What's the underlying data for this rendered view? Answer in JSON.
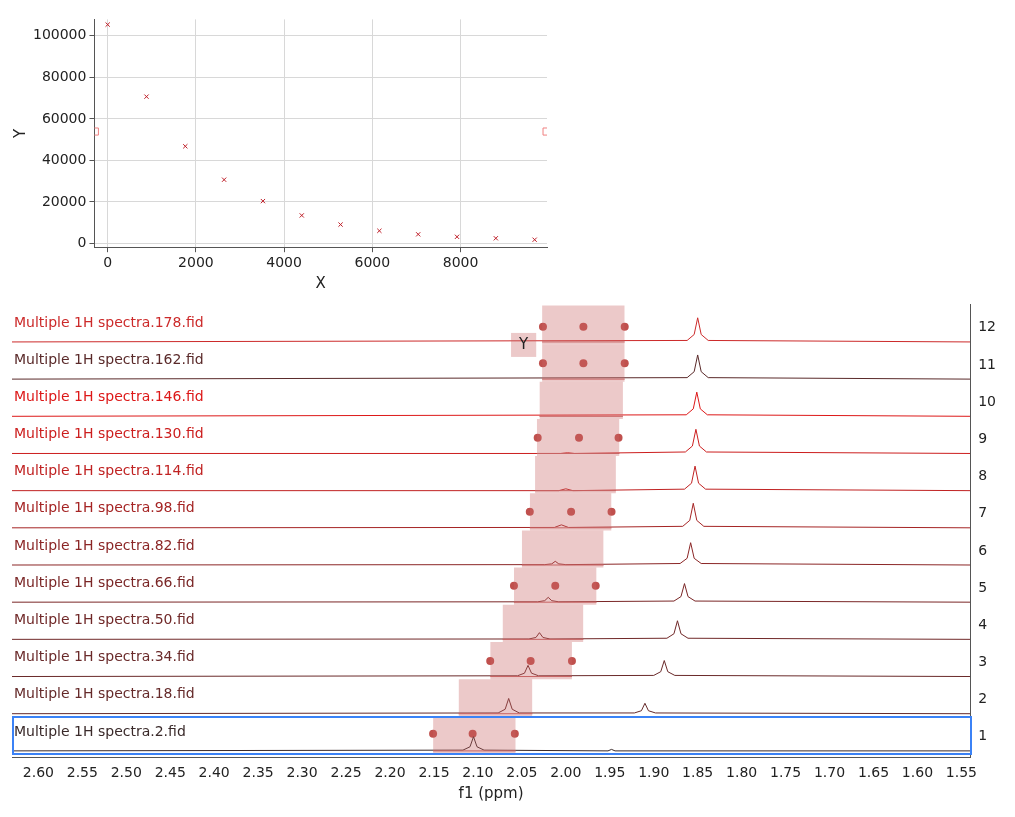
{
  "chart_data": [
    {
      "type": "scatter",
      "xlabel": "X",
      "ylabel": "Y",
      "xlim": [
        -300,
        9960
      ],
      "ylim": [
        -1800,
        107900
      ],
      "xticks": [
        0,
        2000,
        4000,
        6000,
        8000
      ],
      "yticks": [
        0,
        20000,
        40000,
        60000,
        80000,
        100000
      ],
      "grid": true,
      "series": [
        {
          "marker": "cross",
          "color": "#c0202a",
          "x": [
            0,
            880,
            1760,
            2640,
            3520,
            4400,
            5280,
            6160,
            7040,
            7920,
            8800,
            9680
          ],
          "values": [
            105400,
            70700,
            46800,
            30700,
            20400,
            13500,
            9100,
            6100,
            4400,
            3200,
            2500,
            1800
          ]
        },
        {
          "marker": "square",
          "color": "#f08080",
          "x": [
            -290,
            9950
          ],
          "values": [
            53900,
            53900
          ]
        }
      ]
    },
    {
      "type": "line",
      "xlabel": "f1 (ppm)",
      "xlim": [
        2.63,
        1.54
      ],
      "ylim": [
        0.45,
        12.63
      ],
      "grid": false,
      "xticks": [
        {
          "value": 2.6,
          "label": "2.60"
        },
        2.55,
        {
          "value": 2.5,
          "label": "2.50"
        },
        2.45,
        {
          "value": 2.4,
          "label": "2.40"
        },
        2.35,
        {
          "value": 2.3,
          "label": "2.30"
        },
        2.25,
        {
          "value": 2.2,
          "label": "2.20"
        },
        2.15,
        {
          "value": 2.1,
          "label": "2.10"
        },
        2.05,
        {
          "value": 2.0,
          "label": "2.00"
        },
        1.95,
        {
          "value": 1.9,
          "label": "1.90"
        },
        1.85,
        {
          "value": 1.8,
          "label": "1.80"
        },
        1.75,
        {
          "value": 1.7,
          "label": "1.70"
        },
        1.65,
        {
          "value": 1.6,
          "label": "1.60"
        },
        1.55
      ],
      "yticks": [
        1,
        2,
        3,
        4,
        5,
        6,
        7,
        8,
        9,
        10,
        11,
        12
      ],
      "annotations": [
        {
          "text": "Y",
          "x": 2.048,
          "y": 11.54
        }
      ],
      "series": [
        {
          "color": "#c86464",
          "x": [
            2.151,
            2.057
          ],
          "lower": [
            0.55,
            0.55
          ],
          "upper": [
            1.55,
            1.55
          ],
          "values": [
            0.62,
            0.62
          ]
        },
        {
          "color": "#c86464",
          "x": [
            2.122,
            2.038
          ],
          "lower": [
            1.55,
            1.55
          ],
          "upper": [
            2.55,
            2.55
          ],
          "values": [
            1.62,
            1.62
          ]
        },
        {
          "color": "#c86464",
          "x": [
            2.086,
            1.993
          ],
          "lower": [
            2.55,
            2.55
          ],
          "upper": [
            3.55,
            3.55
          ],
          "values": [
            2.62,
            2.62
          ]
        },
        {
          "color": "#c86464",
          "x": [
            2.072,
            1.98
          ],
          "lower": [
            3.55,
            3.55
          ],
          "upper": [
            4.55,
            4.55
          ],
          "values": [
            3.62,
            3.62
          ]
        },
        {
          "color": "#c86464",
          "x": [
            2.059,
            1.965
          ],
          "lower": [
            4.55,
            4.55
          ],
          "upper": [
            5.55,
            5.55
          ],
          "values": [
            4.62,
            4.62
          ]
        },
        {
          "color": "#c86464",
          "x": [
            2.05,
            1.957
          ],
          "lower": [
            5.55,
            5.55
          ],
          "upper": [
            6.55,
            6.55
          ],
          "values": [
            5.62,
            5.62
          ]
        },
        {
          "color": "#c86464",
          "x": [
            2.041,
            1.948
          ],
          "lower": [
            6.55,
            6.55
          ],
          "upper": [
            7.55,
            7.55
          ],
          "values": [
            6.62,
            6.62
          ]
        },
        {
          "color": "#c86464",
          "x": [
            2.035,
            1.943
          ],
          "lower": [
            7.55,
            7.55
          ],
          "upper": [
            8.55,
            8.55
          ],
          "values": [
            7.62,
            7.62
          ]
        },
        {
          "color": "#c86464",
          "x": [
            2.033,
            1.939
          ],
          "lower": [
            8.55,
            8.55
          ],
          "upper": [
            9.55,
            9.55
          ],
          "values": [
            8.62,
            8.62
          ]
        },
        {
          "color": "#c86464",
          "x": [
            2.03,
            1.935
          ],
          "lower": [
            9.55,
            9.55
          ],
          "upper": [
            10.55,
            10.55
          ],
          "values": [
            9.62,
            9.62
          ]
        },
        {
          "color": "#c86464",
          "x": [
            2.027,
            1.933
          ],
          "lower": [
            10.55,
            10.55
          ],
          "upper": [
            11.55,
            11.55
          ],
          "values": [
            10.62,
            10.62
          ]
        },
        {
          "color": "#c86464",
          "x": [
            2.027,
            1.933
          ],
          "lower": [
            11.55,
            11.55
          ],
          "upper": [
            12.6,
            12.6
          ],
          "values": [
            11.62,
            11.62
          ]
        },
        {
          "name": "Multiple 1H spectra.178.fid",
          "color": "#cc2a2a",
          "x": [
            2.63,
            1.862,
            1.854,
            1.85,
            1.846,
            1.838,
            1.54
          ],
          "values": [
            11.62,
            11.66,
            11.82,
            12.27,
            11.82,
            11.66,
            11.62
          ]
        },
        {
          "name": "Multiple 1H spectra.162.fid",
          "color": "#5a2a2a",
          "x": [
            2.63,
            1.862,
            1.854,
            1.85,
            1.846,
            1.838,
            1.54
          ],
          "values": [
            10.62,
            10.66,
            10.82,
            11.27,
            10.82,
            10.66,
            10.62
          ]
        },
        {
          "name": "Multiple 1H spectra.146.fid",
          "color": "#dd1818",
          "x": [
            2.63,
            1.863,
            1.855,
            1.851,
            1.847,
            1.839,
            1.54
          ],
          "values": [
            9.62,
            9.66,
            9.82,
            10.27,
            9.82,
            9.66,
            9.62
          ]
        },
        {
          "name": "Multiple 1H spectra.130.fid",
          "color": "#cc1e1e",
          "x": [
            2.63,
            2.006,
            1.998,
            1.99,
            1.864,
            1.856,
            1.852,
            1.848,
            1.84,
            1.54
          ],
          "values": [
            8.62,
            8.62,
            8.64,
            8.62,
            8.66,
            8.82,
            9.27,
            8.82,
            8.66,
            8.62
          ]
        },
        {
          "name": "Multiple 1H spectra.114.fid",
          "color": "#c02222",
          "x": [
            2.63,
            2.008,
            2.0,
            1.992,
            1.865,
            1.857,
            1.853,
            1.849,
            1.841,
            1.54
          ],
          "values": [
            7.62,
            7.62,
            7.67,
            7.62,
            7.66,
            7.82,
            8.28,
            7.82,
            7.66,
            7.62
          ]
        },
        {
          "name": "Multiple 1H spectra.98.fid",
          "color": "#a52424",
          "x": [
            2.63,
            2.013,
            2.005,
            1.997,
            1.867,
            1.859,
            1.855,
            1.851,
            1.843,
            1.54
          ],
          "values": [
            6.62,
            6.63,
            6.7,
            6.63,
            6.66,
            6.82,
            7.28,
            6.82,
            6.66,
            6.62
          ]
        },
        {
          "name": "Multiple 1H spectra.82.fid",
          "color": "#8b2626",
          "x": [
            2.63,
            2.024,
            2.016,
            2.012,
            2.008,
            2.0,
            1.87,
            1.862,
            1.858,
            1.854,
            1.846,
            1.54
          ],
          "values": [
            5.62,
            5.63,
            5.65,
            5.72,
            5.65,
            5.63,
            5.66,
            5.8,
            6.22,
            5.8,
            5.66,
            5.62
          ]
        },
        {
          "name": "Multiple 1H spectra.66.fid",
          "color": "#7a2626",
          "x": [
            2.63,
            2.032,
            2.024,
            2.02,
            2.016,
            2.008,
            1.877,
            1.869,
            1.865,
            1.861,
            1.853,
            1.54
          ],
          "values": [
            4.62,
            4.63,
            4.66,
            4.75,
            4.66,
            4.63,
            4.65,
            4.77,
            5.12,
            4.77,
            4.65,
            4.62
          ]
        },
        {
          "name": "Multiple 1H spectra.50.fid",
          "color": "#702828",
          "x": [
            2.63,
            2.042,
            2.034,
            2.03,
            2.026,
            2.018,
            1.885,
            1.877,
            1.873,
            1.869,
            1.861,
            1.54
          ],
          "values": [
            3.62,
            3.63,
            3.67,
            3.8,
            3.67,
            3.63,
            3.65,
            3.77,
            4.12,
            3.77,
            3.65,
            3.62
          ]
        },
        {
          "name": "Multiple 1H spectra.34.fid",
          "color": "#6a2a2a",
          "x": [
            2.63,
            2.055,
            2.047,
            2.043,
            2.039,
            2.031,
            1.9,
            1.892,
            1.888,
            1.884,
            1.876,
            1.54
          ],
          "values": [
            2.62,
            2.64,
            2.71,
            2.92,
            2.71,
            2.64,
            2.65,
            2.75,
            3.05,
            2.75,
            2.65,
            2.62
          ]
        },
        {
          "name": "Multiple 1H spectra.18.fid",
          "color": "#652a2a",
          "x": [
            2.63,
            2.077,
            2.069,
            2.065,
            2.061,
            2.053,
            1.922,
            1.914,
            1.91,
            1.906,
            1.898,
            1.54
          ],
          "values": [
            1.62,
            1.64,
            1.74,
            2.03,
            1.74,
            1.64,
            1.64,
            1.7,
            1.9,
            1.7,
            1.64,
            1.62
          ]
        },
        {
          "name": "Multiple 1H spectra.2.fid",
          "color": "#3a2a2a",
          "x": [
            2.63,
            2.117,
            2.109,
            2.105,
            2.101,
            2.093,
            1.952,
            1.948,
            1.944,
            1.54
          ],
          "values": [
            0.62,
            0.64,
            0.73,
            1.0,
            0.73,
            0.64,
            0.62,
            0.66,
            0.62,
            0.62
          ]
        },
        {
          "type": "scatter",
          "marker": "circle",
          "color": "#c0504d",
          "x": [
            2.151,
            2.106,
            2.058,
            2.086,
            2.04,
            1.993,
            2.059,
            2.012,
            1.966,
            2.041,
            1.994,
            1.948,
            2.032,
            1.985,
            1.94,
            2.026,
            1.98,
            1.933,
            2.026,
            1.98,
            1.933
          ],
          "values": [
            1.08,
            1.08,
            1.08,
            3.04,
            3.04,
            3.04,
            5.06,
            5.06,
            5.06,
            7.05,
            7.05,
            7.05,
            9.04,
            9.04,
            9.04,
            11.05,
            11.05,
            11.05,
            12.03,
            12.03,
            12.03
          ]
        }
      ]
    }
  ]
}
